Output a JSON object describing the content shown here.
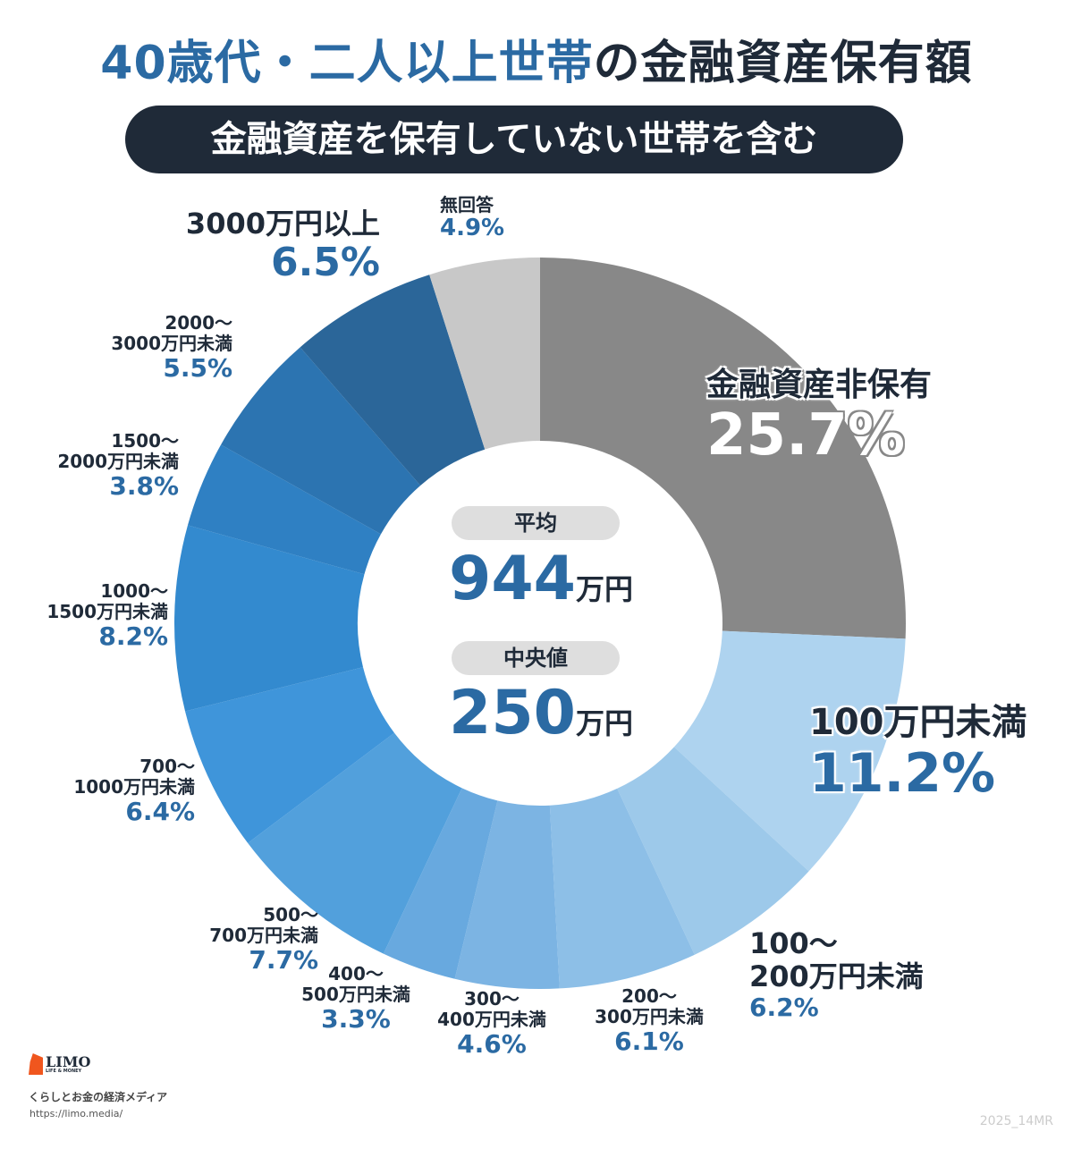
{
  "title": {
    "part1": "40歳代・二人以上世帯",
    "part2": "の金融資産保有額"
  },
  "subtitle": "金融資産を保有していない世帯を含む",
  "center": {
    "mean_label": "平均",
    "mean_value": "944",
    "mean_unit": "万円",
    "median_label": "中央値",
    "median_value": "250",
    "median_unit": "万円"
  },
  "chart_data": {
    "type": "pie",
    "donut": true,
    "slices": [
      {
        "label": "金融資産非保有",
        "value": 25.7,
        "display": "25.7%",
        "color": "#888888"
      },
      {
        "label": "100万円未満",
        "value": 11.2,
        "display": "11.2%",
        "color": "#aed3ef"
      },
      {
        "label": "100〜200万円未満",
        "value": 6.2,
        "display": "6.2%",
        "color": "#9dc9ea"
      },
      {
        "label": "200〜300万円未満",
        "value": 6.1,
        "display": "6.1%",
        "color": "#8dbfe7"
      },
      {
        "label": "300〜400万円未満",
        "value": 4.6,
        "display": "4.6%",
        "color": "#7cb4e3"
      },
      {
        "label": "400〜500万円未満",
        "value": 3.3,
        "display": "3.3%",
        "color": "#68a9df"
      },
      {
        "label": "500〜700万円未満",
        "value": 7.7,
        "display": "7.7%",
        "color": "#52a0dc"
      },
      {
        "label": "700〜1000万円未満",
        "value": 6.4,
        "display": "6.4%",
        "color": "#3f95da"
      },
      {
        "label": "1000〜1500万円未満",
        "value": 8.2,
        "display": "8.2%",
        "color": "#338acf"
      },
      {
        "label": "1500〜2000万円未満",
        "value": 3.8,
        "display": "3.8%",
        "color": "#2f80c3"
      },
      {
        "label": "2000〜3000万円未満",
        "value": 5.5,
        "display": "5.5%",
        "color": "#2c74b1"
      },
      {
        "label": "3000万円以上",
        "value": 6.5,
        "display": "6.5%",
        "color": "#2b6699"
      },
      {
        "label": "無回答",
        "value": 4.9,
        "display": "4.9%",
        "color": "#c8c8c8"
      }
    ],
    "label_lines": [
      [
        "金融資産非保有"
      ],
      [
        "100万円未満"
      ],
      [
        "100〜",
        "200万円未満"
      ],
      [
        "200〜",
        "300万円未満"
      ],
      [
        "300〜",
        "400万円未満"
      ],
      [
        "400〜",
        "500万円未満"
      ],
      [
        "500〜",
        "700万円未満"
      ],
      [
        "700〜",
        "1000万円未満"
      ],
      [
        "1000〜",
        "1500万円未満"
      ],
      [
        "1500〜",
        "2000万円未満"
      ],
      [
        "2000〜",
        "3000万円未満"
      ],
      [
        "3000万円以上"
      ],
      [
        "無回答"
      ]
    ]
  },
  "footer": {
    "logo": "LIMO",
    "logo_sub": "LIFE & MONEY",
    "tagline": "くらしとお金の経済メディア",
    "url": "https://limo.media/",
    "code": "2025_14MR"
  }
}
